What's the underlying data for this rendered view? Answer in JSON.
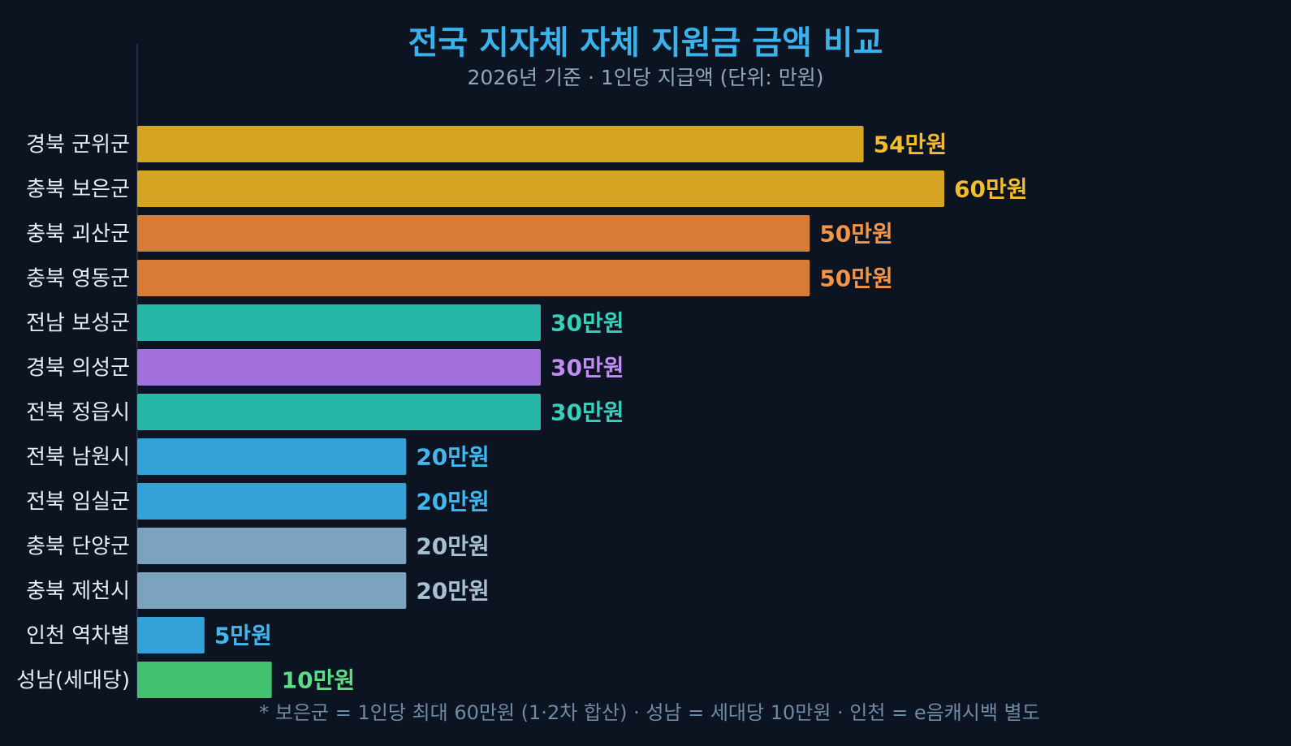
{
  "chart_data": {
    "type": "bar",
    "orientation": "horizontal",
    "title": "전국 지자체 자체 지원금 금액 비교",
    "subtitle": "2026년 기준 · 1인당 지급액 (단위: 만원)",
    "categories": [
      "경북 군위군",
      "충북 보은군",
      "충북 괴산군",
      "충북 영동군",
      "전남 보성군",
      "경북 의성군",
      "전북 정읍시",
      "전북 남원시",
      "전북 임실군",
      "충북 단양군",
      "충북 제천시",
      "인천 역차별",
      "성남(세대당)"
    ],
    "values": [
      54,
      60,
      50,
      50,
      30,
      30,
      30,
      20,
      20,
      20,
      20,
      5,
      10
    ],
    "value_labels": [
      "54만원",
      "60만원",
      "50만원",
      "50만원",
      "30만원",
      "30만원",
      "30만원",
      "20만원",
      "20만원",
      "20만원",
      "20만원",
      "5만원",
      "10만원"
    ],
    "bar_colors": [
      "#d4a422",
      "#d4a422",
      "#d77c38",
      "#d77c38",
      "#26b8a6",
      "#a371db",
      "#26b8a6",
      "#32a2d8",
      "#32a2d8",
      "#7ba2bf",
      "#7ba2bf",
      "#32a2d8",
      "#42c26e"
    ],
    "label_colors": [
      "#f3bd2c",
      "#f3bd2c",
      "#f39447",
      "#f39447",
      "#34d2b9",
      "#c18df3",
      "#34d2b9",
      "#42b6ee",
      "#42b6ee",
      "#a8c0d3",
      "#a8c0d3",
      "#42b6ee",
      "#5bdc86"
    ],
    "xlim": [
      0,
      60
    ],
    "grid": false,
    "footnote": "* 보은군 = 1인당 최대 60만원 (1·2차 합산) · 성남 = 세대당 10만원 · 인천 = e음캐시백 별도"
  },
  "colors": {
    "background": "#0b1420",
    "title": "#3ab3ec",
    "subtitle": "#8fa6bb",
    "category_text": "#e6edf4",
    "axis_line": "#2a3a4c",
    "footnote": "#6f8aa5"
  }
}
